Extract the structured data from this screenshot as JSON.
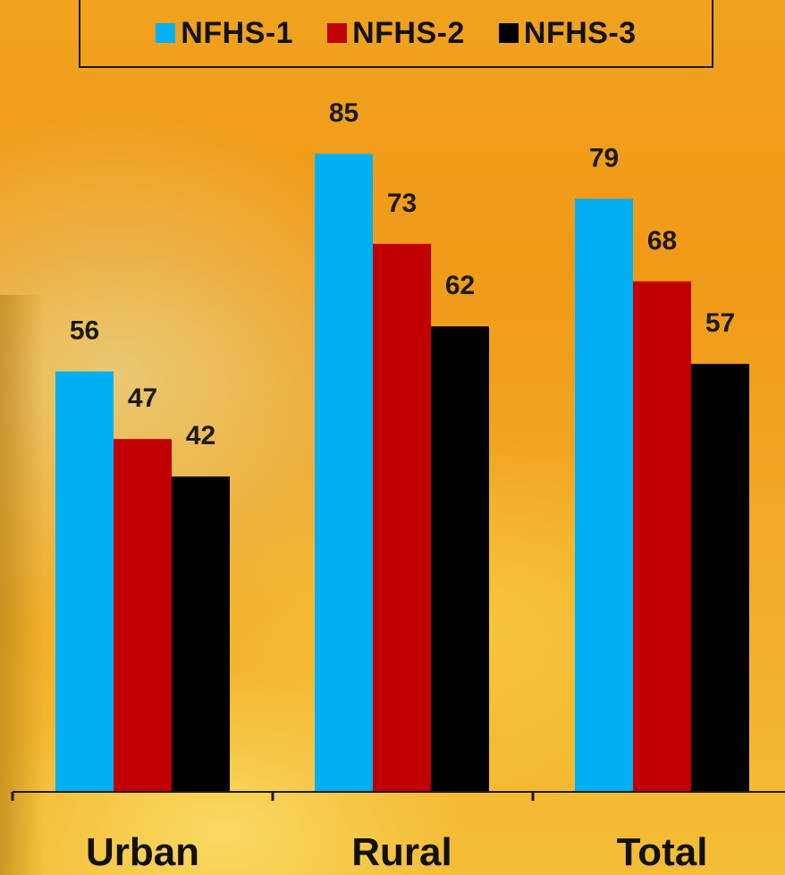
{
  "chart_data": {
    "type": "bar",
    "categories": [
      "Urban",
      "Rural",
      "Total"
    ],
    "series": [
      {
        "name": "NFHS-1",
        "values": [
          56,
          85,
          79
        ],
        "color": "#00b0f0"
      },
      {
        "name": "NFHS-2",
        "values": [
          47,
          73,
          68
        ],
        "color": "#c00000"
      },
      {
        "name": "NFHS-3",
        "values": [
          42,
          62,
          57
        ],
        "color": "#000000"
      }
    ],
    "ylim": [
      0,
      100
    ],
    "legend_placement": "top",
    "grid": false,
    "data_labels": true
  }
}
